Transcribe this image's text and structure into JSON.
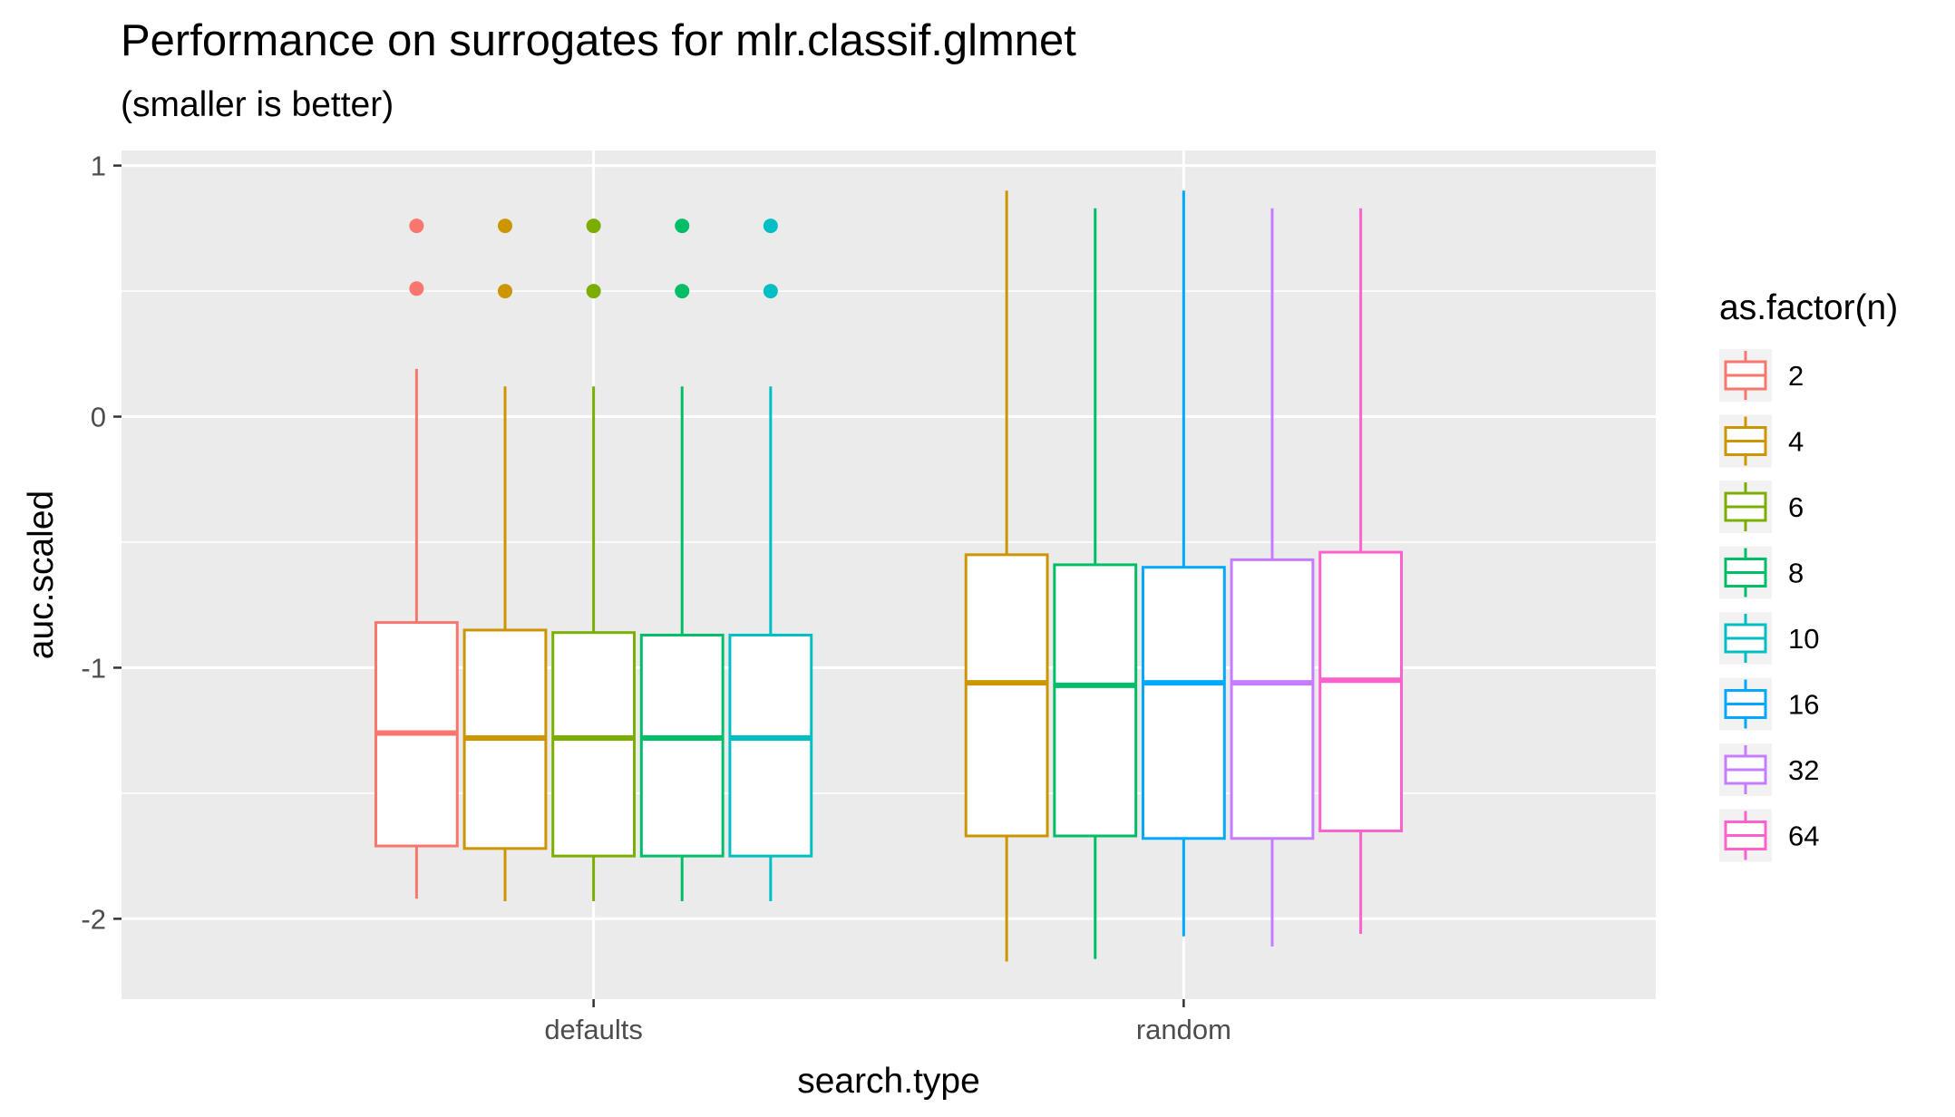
{
  "chart_data": {
    "type": "boxplot",
    "title": "Performance on surrogates for mlr.classif.glmnet",
    "subtitle": "(smaller is better)",
    "xlabel": "search.type",
    "ylabel": "auc.scaled",
    "categories": [
      "defaults",
      "random"
    ],
    "ylim": [
      -2.32,
      1.06
    ],
    "yticks": [
      1,
      0,
      -1,
      -2
    ],
    "ytick_labels": [
      "1",
      "0",
      "-1",
      "-2"
    ],
    "grid": true,
    "legend": {
      "title": "as.factor(n)",
      "position": "right"
    },
    "series": [
      {
        "name": "2",
        "color": "#F8766D",
        "boxes": [
          {
            "category": "defaults",
            "lower_whisker": -1.92,
            "q1": -1.71,
            "median": -1.26,
            "q3": -0.82,
            "upper_whisker": 0.19,
            "outliers": [
              0.51,
              0.76
            ]
          }
        ]
      },
      {
        "name": "4",
        "color": "#CD9600",
        "boxes": [
          {
            "category": "defaults",
            "lower_whisker": -1.93,
            "q1": -1.72,
            "median": -1.28,
            "q3": -0.85,
            "upper_whisker": 0.12,
            "outliers": [
              0.5,
              0.76
            ]
          },
          {
            "category": "random",
            "lower_whisker": -2.17,
            "q1": -1.67,
            "median": -1.06,
            "q3": -0.55,
            "upper_whisker": 0.9,
            "outliers": []
          }
        ]
      },
      {
        "name": "6",
        "color": "#7CAE00",
        "boxes": [
          {
            "category": "defaults",
            "lower_whisker": -1.93,
            "q1": -1.75,
            "median": -1.28,
            "q3": -0.86,
            "upper_whisker": 0.12,
            "outliers": [
              0.5,
              0.76
            ]
          }
        ]
      },
      {
        "name": "8",
        "color": "#00BE67",
        "boxes": [
          {
            "category": "defaults",
            "lower_whisker": -1.93,
            "q1": -1.75,
            "median": -1.28,
            "q3": -0.87,
            "upper_whisker": 0.12,
            "outliers": [
              0.5,
              0.76
            ]
          },
          {
            "category": "random",
            "lower_whisker": -2.16,
            "q1": -1.67,
            "median": -1.07,
            "q3": -0.59,
            "upper_whisker": 0.83,
            "outliers": []
          }
        ]
      },
      {
        "name": "10",
        "color": "#00BFC4",
        "boxes": [
          {
            "category": "defaults",
            "lower_whisker": -1.93,
            "q1": -1.75,
            "median": -1.28,
            "q3": -0.87,
            "upper_whisker": 0.12,
            "outliers": [
              0.5,
              0.76
            ]
          }
        ]
      },
      {
        "name": "16",
        "color": "#00A9FF",
        "boxes": [
          {
            "category": "random",
            "lower_whisker": -2.07,
            "q1": -1.68,
            "median": -1.06,
            "q3": -0.6,
            "upper_whisker": 0.9,
            "outliers": []
          }
        ]
      },
      {
        "name": "32",
        "color": "#C77CFF",
        "boxes": [
          {
            "category": "random",
            "lower_whisker": -2.11,
            "q1": -1.68,
            "median": -1.06,
            "q3": -0.57,
            "upper_whisker": 0.83,
            "outliers": []
          }
        ]
      },
      {
        "name": "64",
        "color": "#FF61CC",
        "boxes": [
          {
            "category": "random",
            "lower_whisker": -2.06,
            "q1": -1.65,
            "median": -1.05,
            "q3": -0.54,
            "upper_whisker": 0.83,
            "outliers": []
          }
        ]
      }
    ]
  }
}
